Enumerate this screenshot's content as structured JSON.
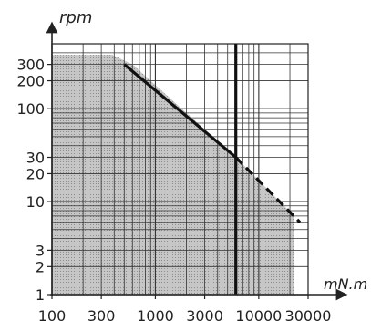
{
  "chart_data": {
    "type": "area",
    "title": "",
    "xlabel": "mN.m",
    "ylabel": "rpm",
    "x_scale": "log",
    "y_scale": "log",
    "xlim": [
      100,
      30000
    ],
    "ylim": [
      1,
      500
    ],
    "x_ticks": [
      {
        "value": 100,
        "label": "100"
      },
      {
        "value": 300,
        "label": "300"
      },
      {
        "value": 1000,
        "label": "1000"
      },
      {
        "value": 3000,
        "label": "3000"
      },
      {
        "value": 10000,
        "label": "10000"
      },
      {
        "value": 30000,
        "label": "30000"
      }
    ],
    "y_ticks": [
      {
        "value": 1,
        "label": "1"
      },
      {
        "value": 2,
        "label": "2"
      },
      {
        "value": 3,
        "label": "3"
      },
      {
        "value": 10,
        "label": "10"
      },
      {
        "value": 20,
        "label": "20"
      },
      {
        "value": 30,
        "label": "30"
      },
      {
        "value": 100,
        "label": "100"
      },
      {
        "value": 200,
        "label": "200"
      },
      {
        "value": 300,
        "label": "300"
      }
    ],
    "grid": true,
    "shaded_region": [
      {
        "x": 100,
        "y": 380
      },
      {
        "x": 380,
        "y": 380
      },
      {
        "x": 600,
        "y": 300
      },
      {
        "x": 6000,
        "y": 30
      },
      {
        "x": 22000,
        "y": 7
      },
      {
        "x": 22000,
        "y": 1
      },
      {
        "x": 100,
        "y": 1
      }
    ],
    "series": [
      {
        "line_style": "solid",
        "x": [
          500,
          6000
        ],
        "y": [
          300,
          30
        ]
      },
      {
        "line_style": "dashed",
        "x": [
          6000,
          25000
        ],
        "y": [
          30,
          6
        ]
      }
    ],
    "vertical_markers": [
      {
        "x": 6000
      }
    ],
    "colors": {
      "shade": "#b4b4b4",
      "grid": "#333333",
      "line": "#111111"
    }
  }
}
